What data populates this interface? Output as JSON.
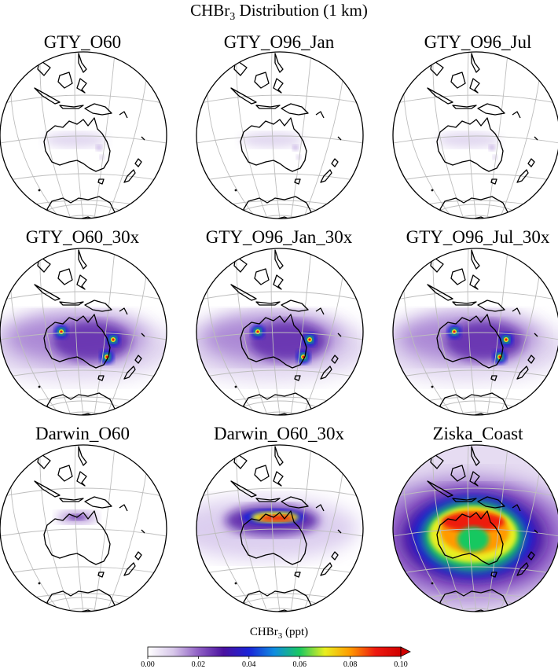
{
  "title_main": "CHBr",
  "title_sub": "3",
  "title_rest": " Distribution (1 km)",
  "panels": [
    {
      "name": "GTY_O60",
      "intensity": 0.05,
      "pattern": "weak"
    },
    {
      "name": "GTY_O96_Jan",
      "intensity": 0.04,
      "pattern": "weak"
    },
    {
      "name": "GTY_O96_Jul",
      "intensity": 0.05,
      "pattern": "weak"
    },
    {
      "name": "GTY_O60_30x",
      "intensity": 0.55,
      "pattern": "hotspots"
    },
    {
      "name": "GTY_O96_Jan_30x",
      "intensity": 0.55,
      "pattern": "hotspots"
    },
    {
      "name": "GTY_O96_Jul_30x",
      "intensity": 0.55,
      "pattern": "hotspots"
    },
    {
      "name": "Darwin_O60",
      "intensity": 0.08,
      "pattern": "darwin-weak"
    },
    {
      "name": "Darwin_O60_30x",
      "intensity": 0.6,
      "pattern": "darwin"
    },
    {
      "name": "Ziska_Coast",
      "intensity": 1.0,
      "pattern": "ziska"
    }
  ],
  "colorbar": {
    "label_main": "CHBr",
    "label_sub": "3",
    "label_rest": " (ppt)",
    "ticks": [
      "0.00",
      "0.02",
      "0.04",
      "0.06",
      "0.08",
      "0.10"
    ],
    "colors": [
      "#ffffff",
      "#d8c8ea",
      "#8f5fc4",
      "#4a11a0",
      "#1a24d8",
      "#0f8ce0",
      "#19c860",
      "#e8ef20",
      "#ff9a00",
      "#ee1a10",
      "#d00000"
    ]
  }
}
